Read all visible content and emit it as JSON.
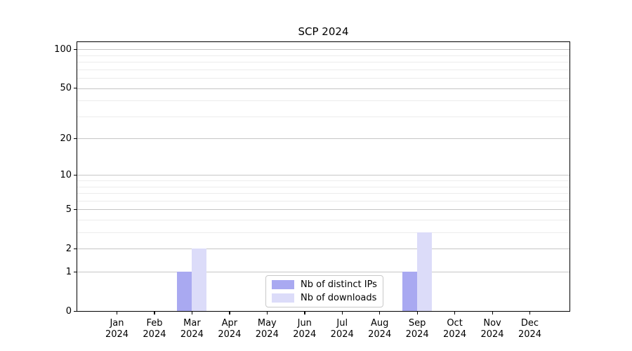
{
  "chart_data": {
    "type": "bar",
    "title": "SCP 2024",
    "categories": [
      "Jan",
      "Feb",
      "Mar",
      "Apr",
      "May",
      "Jun",
      "Jul",
      "Aug",
      "Sep",
      "Oct",
      "Nov",
      "Dec"
    ],
    "year_label": "2024",
    "series": [
      {
        "name": "Nb of distinct IPs",
        "color": "#a9a9f1",
        "values": [
          0,
          0,
          1,
          0,
          0,
          0,
          0,
          0,
          1,
          0,
          0,
          0
        ]
      },
      {
        "name": "Nb of downloads",
        "color": "#dcdcf9",
        "values": [
          0,
          0,
          2,
          0,
          0,
          0,
          0,
          0,
          3,
          0,
          0,
          0
        ]
      }
    ],
    "xlabel": "",
    "ylabel": "",
    "y_scale": "log1p",
    "y_ticks": [
      0,
      1,
      2,
      5,
      10,
      20,
      50,
      100
    ],
    "y_minor_gridlines": [
      3,
      4,
      6,
      7,
      8,
      9,
      30,
      40,
      60,
      70,
      80,
      90
    ],
    "ylim": [
      0,
      114
    ],
    "grid": true,
    "legend_position": "bottom-center",
    "colors": {
      "major_grid": "#c6c6c6",
      "minor_grid": "#ececec",
      "axis_frame": "#000000",
      "legend_border": "#c9c9c9",
      "text": "#000000",
      "background": "#ffffff"
    }
  }
}
